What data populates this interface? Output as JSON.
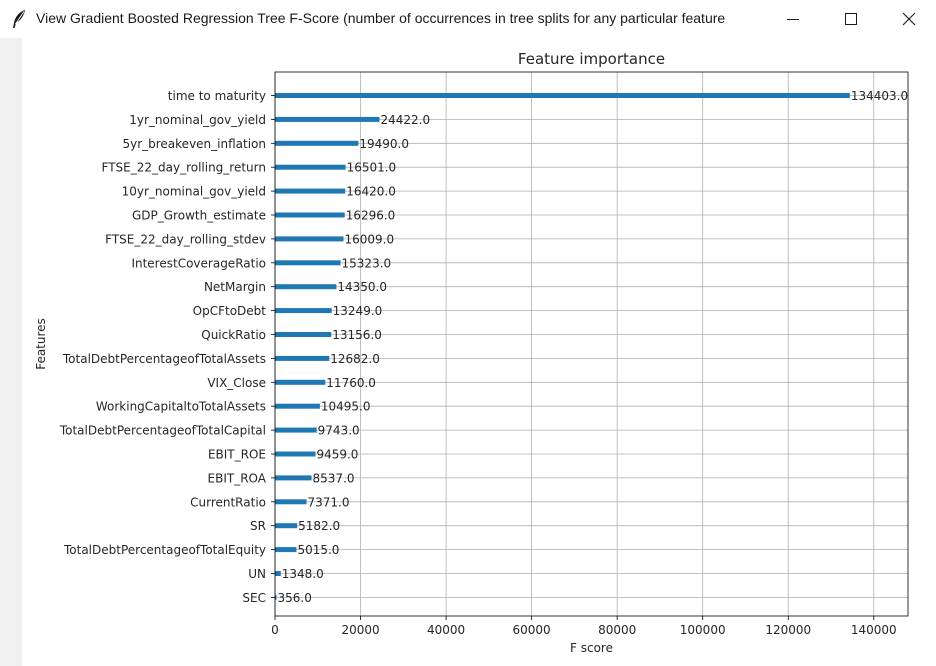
{
  "window": {
    "title": "View Gradient Boosted Regression Tree F-Score (number of occurrences in tree splits for any particular feature",
    "icon": "feather-icon"
  },
  "colors": {
    "bar": "#1f77b4",
    "grid": "#b0b0b0"
  },
  "chart_data": {
    "type": "bar",
    "orientation": "horizontal",
    "title": "Feature importance",
    "xlabel": "F score",
    "ylabel": "Features",
    "xlim": [
      0,
      148000
    ],
    "xticks": [
      0,
      20000,
      40000,
      60000,
      80000,
      100000,
      120000,
      140000
    ],
    "grid": true,
    "categories": [
      "time to maturity",
      "1yr_nominal_gov_yield",
      "5yr_breakeven_inflation",
      "FTSE_22_day_rolling_return",
      "10yr_nominal_gov_yield",
      "GDP_Growth_estimate",
      "FTSE_22_day_rolling_stdev",
      "InterestCoverageRatio",
      "NetMargin",
      "OpCFtoDebt",
      "QuickRatio",
      "TotalDebtPercentageofTotalAssets",
      "VIX_Close",
      "WorkingCapitaltoTotalAssets",
      "TotalDebtPercentageofTotalCapital",
      "EBIT_ROE",
      "EBIT_ROA",
      "CurrentRatio",
      "SR",
      "TotalDebtPercentageofTotalEquity",
      "UN",
      "SEC"
    ],
    "values": [
      134403,
      24422,
      19490,
      16501,
      16420,
      16296,
      16009,
      15323,
      14350,
      13249,
      13156,
      12682,
      11760,
      10495,
      9743,
      9459,
      8537,
      7371,
      5182,
      5015,
      1348,
      356
    ],
    "value_labels": [
      "134403.0",
      "24422.0",
      "19490.0",
      "16501.0",
      "16420.0",
      "16296.0",
      "16009.0",
      "15323.0",
      "14350.0",
      "13249.0",
      "13156.0",
      "12682.0",
      "11760.0",
      "10495.0",
      "9743.0",
      "9459.0",
      "8537.0",
      "7371.0",
      "5182.0",
      "5015.0",
      "1348.0",
      "356.0"
    ]
  }
}
